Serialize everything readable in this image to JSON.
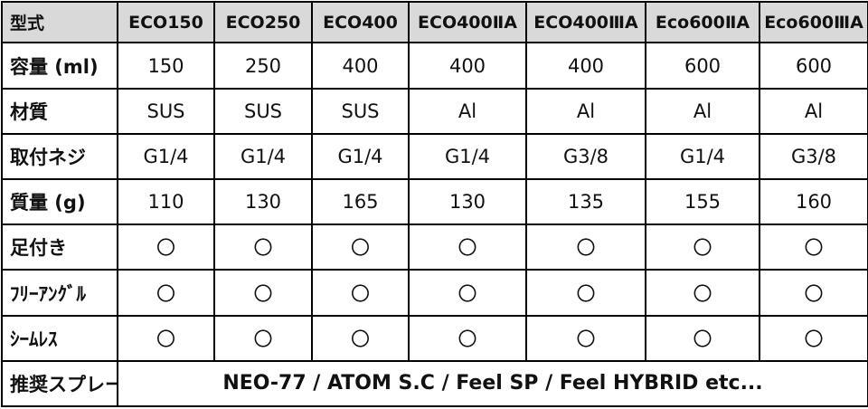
{
  "table": {
    "header": [
      "型式",
      "ECO150",
      "ECO250",
      "ECO400",
      "ECO400ⅡA",
      "ECO400ⅢA",
      "Eco600ⅡA",
      "Eco600ⅢA"
    ],
    "rows": [
      [
        "容量 (ml)",
        "150",
        "250",
        "400",
        "400",
        "400",
        "600",
        "600"
      ],
      [
        "材質",
        "SUS",
        "SUS",
        "SUS",
        "Al",
        "Al",
        "Al",
        "Al"
      ],
      [
        "取付ネジ",
        "G1/4",
        "G1/4",
        "G1/4",
        "G1/4",
        "G3/8",
        "G1/4",
        "G3/8"
      ],
      [
        "質量 (g)",
        "110",
        "130",
        "165",
        "130",
        "135",
        "155",
        "160"
      ],
      [
        "足付き",
        "〇",
        "〇",
        "〇",
        "〇",
        "〇",
        "〇",
        "〇"
      ],
      [
        "ﾌﾘｰｱﾝｸﾞﾙ",
        "〇",
        "〇",
        "〇",
        "〇",
        "〇",
        "〇",
        "〇"
      ],
      [
        "ｼｰﾑﾚｽ",
        "〇",
        "〇",
        "〇",
        "〇",
        "〇",
        "〇",
        "〇"
      ],
      [
        "推奨スプレーガン",
        "NEO-77 / ATOM S.C / Feel SP / Feel HYBRID etc..."
      ]
    ]
  }
}
